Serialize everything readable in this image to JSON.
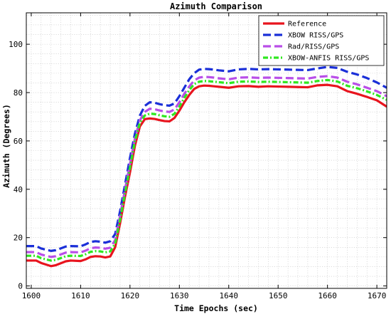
{
  "chart_data": {
    "type": "line",
    "title": "Azimuth Comparison",
    "xlabel": "Time Epochs (sec)",
    "ylabel": "Azimuth (Degrees)",
    "xlim": [
      1599,
      1672
    ],
    "ylim": [
      -1,
      113
    ],
    "xticks": [
      1600,
      1610,
      1620,
      1630,
      1640,
      1650,
      1660,
      1670
    ],
    "yticks": [
      0,
      20,
      40,
      60,
      80,
      100
    ],
    "grid": true,
    "legend_position": "top-right",
    "x": [
      1599,
      1601,
      1602,
      1604,
      1605,
      1607,
      1608,
      1610,
      1611,
      1612,
      1613,
      1614,
      1615,
      1616,
      1617,
      1618,
      1619,
      1620,
      1621,
      1622,
      1623,
      1624,
      1625,
      1626,
      1627,
      1628,
      1629,
      1630,
      1631,
      1632,
      1633,
      1634,
      1635,
      1636,
      1637,
      1638,
      1640,
      1642,
      1644,
      1646,
      1648,
      1650,
      1652,
      1654,
      1656,
      1658,
      1660,
      1662,
      1664,
      1666,
      1668,
      1670,
      1672
    ],
    "series": [
      {
        "name": "Reference",
        "color": "#e8141e",
        "style": "solid",
        "values": [
          10.5,
          10.5,
          9.5,
          8.2,
          8.6,
          10.2,
          10.5,
          10.3,
          11.0,
          12.0,
          12.3,
          12.2,
          11.8,
          12.2,
          16.0,
          26.0,
          37.0,
          47.0,
          58.0,
          66.0,
          69.0,
          69.3,
          69.1,
          68.6,
          68.2,
          68.1,
          69.5,
          72.5,
          76.0,
          79.0,
          81.5,
          82.6,
          82.9,
          82.8,
          82.6,
          82.4,
          82.0,
          82.6,
          82.7,
          82.4,
          82.6,
          82.5,
          82.4,
          82.3,
          82.2,
          83.0,
          83.2,
          82.6,
          80.6,
          79.5,
          78.2,
          76.8,
          74.2
        ]
      },
      {
        "name": "XBOW RISS/GPS",
        "color": "#1a2fd8",
        "style": "dashed",
        "values": [
          16.5,
          16.5,
          15.5,
          14.5,
          14.8,
          16.3,
          16.5,
          16.4,
          17.2,
          18.2,
          18.5,
          18.3,
          17.9,
          18.5,
          21.5,
          31.0,
          42.0,
          53.0,
          63.0,
          70.5,
          74.5,
          76.0,
          75.8,
          75.2,
          74.8,
          74.6,
          75.5,
          78.5,
          82.0,
          85.5,
          88.0,
          89.5,
          89.8,
          89.7,
          89.5,
          89.2,
          88.8,
          89.6,
          89.8,
          89.6,
          89.7,
          89.6,
          89.5,
          89.4,
          89.3,
          90.0,
          90.6,
          90.2,
          88.6,
          87.5,
          86.0,
          84.2,
          82.0
        ]
      },
      {
        "name": "Rad/RISS/GPS",
        "color": "#b94ee8",
        "style": "dashed",
        "values": [
          14.0,
          14.0,
          13.0,
          12.0,
          12.3,
          13.8,
          14.0,
          13.9,
          14.6,
          15.6,
          15.9,
          15.8,
          15.4,
          15.8,
          19.0,
          29.0,
          40.0,
          50.5,
          61.0,
          68.5,
          72.0,
          73.3,
          73.1,
          72.6,
          72.2,
          72.0,
          73.0,
          76.0,
          79.5,
          82.5,
          85.0,
          86.2,
          86.5,
          86.4,
          86.2,
          85.9,
          85.5,
          86.2,
          86.3,
          86.1,
          86.2,
          86.1,
          86.0,
          85.9,
          85.8,
          86.5,
          86.8,
          86.2,
          84.5,
          83.4,
          82.0,
          80.6,
          78.5
        ]
      },
      {
        "name": "XBOW-ANFIS RISS/GPS",
        "color": "#2ee81e",
        "style": "dash-dot",
        "values": [
          12.5,
          12.5,
          11.5,
          10.5,
          10.8,
          12.3,
          12.5,
          12.4,
          13.1,
          14.1,
          14.4,
          14.3,
          13.9,
          14.3,
          17.5,
          27.5,
          38.5,
          49.0,
          60.0,
          67.5,
          70.5,
          71.3,
          71.1,
          70.6,
          70.2,
          70.0,
          71.2,
          74.2,
          77.8,
          81.0,
          83.5,
          84.5,
          84.8,
          84.7,
          84.5,
          84.3,
          83.9,
          84.5,
          84.6,
          84.4,
          84.5,
          84.4,
          84.3,
          84.2,
          84.1,
          84.8,
          85.2,
          84.6,
          82.8,
          81.8,
          80.5,
          79.0,
          77.0
        ]
      }
    ]
  }
}
